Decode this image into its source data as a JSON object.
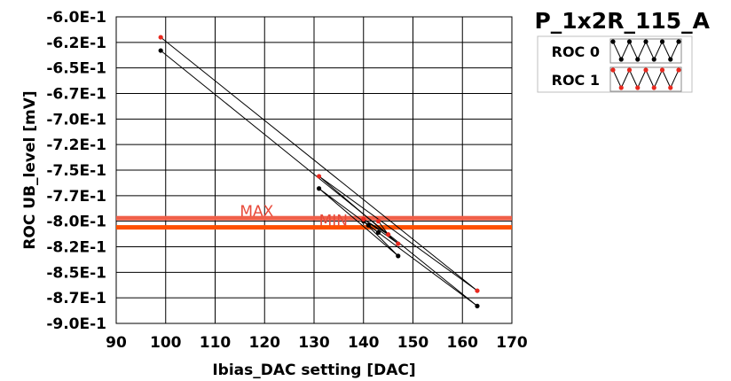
{
  "chart_data": {
    "type": "line",
    "title": "P_1x2R_115_A",
    "xlabel": "Ibias_DAC setting [DAC]",
    "ylabel": "ROC UB_level [mV]",
    "xlim": [
      90,
      170
    ],
    "ylim": [
      -0.9,
      -0.6
    ],
    "x_ticks": [
      90,
      100,
      110,
      120,
      130,
      140,
      150,
      160,
      170
    ],
    "y_ticks": [
      {
        "value": -0.6,
        "label": "-6.0E-1"
      },
      {
        "value": -0.625,
        "label": "-6.2E-1"
      },
      {
        "value": -0.65,
        "label": "-6.5E-1"
      },
      {
        "value": -0.675,
        "label": "-6.7E-1"
      },
      {
        "value": -0.7,
        "label": "-7.0E-1"
      },
      {
        "value": -0.725,
        "label": "-7.2E-1"
      },
      {
        "value": -0.75,
        "label": "-7.5E-1"
      },
      {
        "value": -0.775,
        "label": "-7.7E-1"
      },
      {
        "value": -0.8,
        "label": "-8.0E-1"
      },
      {
        "value": -0.825,
        "label": "-8.2E-1"
      },
      {
        "value": -0.85,
        "label": "-8.5E-1"
      },
      {
        "value": -0.875,
        "label": "-8.7E-1"
      },
      {
        "value": -0.9,
        "label": "-9.0E-1"
      }
    ],
    "grid": true,
    "legend_position": "top-right",
    "series": [
      {
        "name": "ROC 0",
        "color": "#000000",
        "points": [
          [
            99,
            -0.633
          ],
          [
            163,
            -0.883
          ],
          [
            131,
            -0.768
          ],
          [
            147,
            -0.834
          ],
          [
            140,
            -0.8
          ],
          [
            143,
            -0.811
          ],
          [
            141,
            -0.804
          ]
        ]
      },
      {
        "name": "ROC 1",
        "color": "#e8281e",
        "points": [
          [
            99,
            -0.62
          ],
          [
            163,
            -0.868
          ],
          [
            131,
            -0.756
          ],
          [
            147,
            -0.822
          ],
          [
            140,
            -0.798
          ],
          [
            145,
            -0.813
          ],
          [
            143,
            -0.8
          ]
        ]
      }
    ],
    "limits": [
      {
        "label": "MAX",
        "value": -0.797,
        "color": "#f0604a",
        "label_x": 115
      },
      {
        "label": "MIN",
        "value": -0.806,
        "color": "#ff5000",
        "label_x": 131
      }
    ]
  }
}
